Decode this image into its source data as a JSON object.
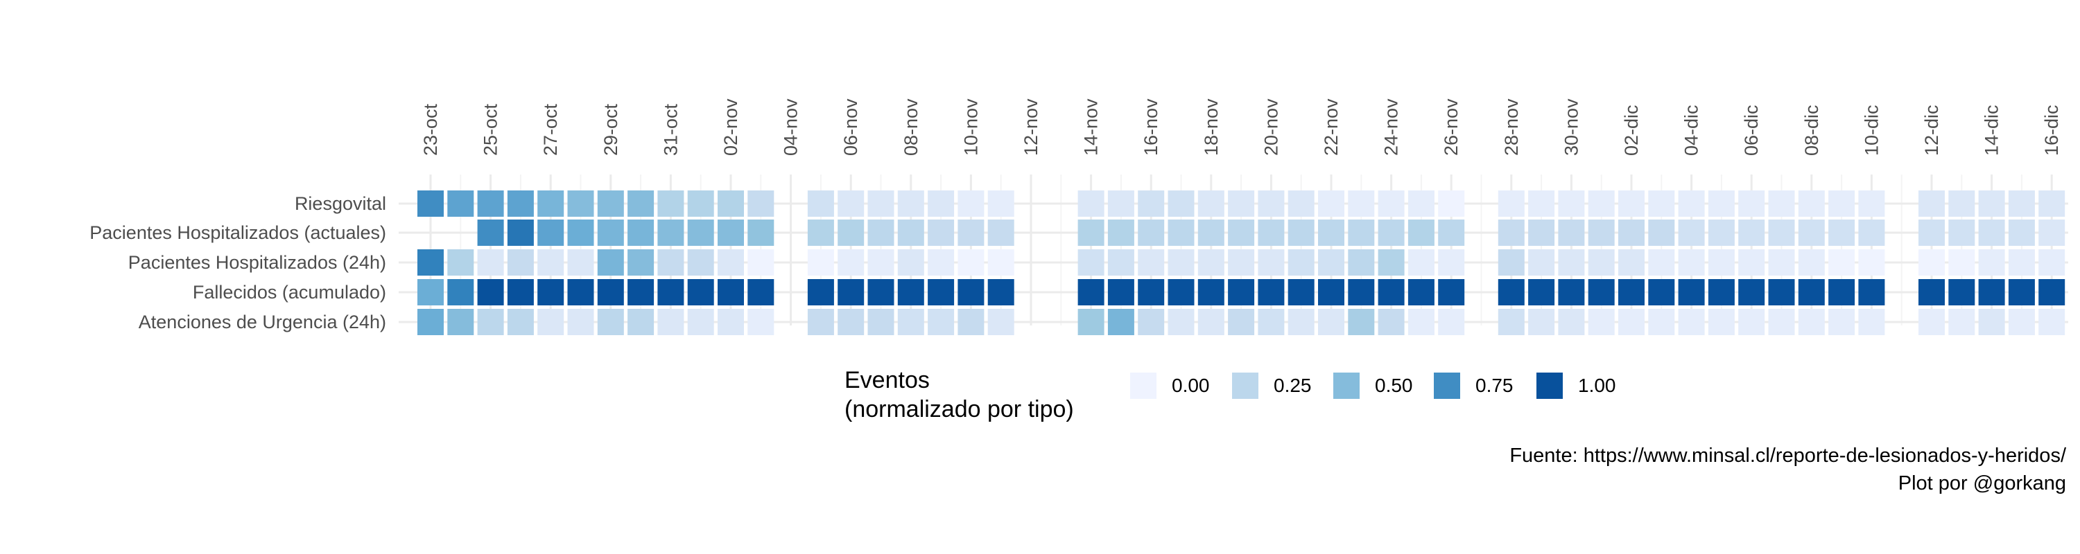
{
  "chart_data": {
    "type": "heatmap",
    "dates": [
      "23-oct",
      "24-oct",
      "25-oct",
      "26-oct",
      "27-oct",
      "28-oct",
      "29-oct",
      "30-oct",
      "31-oct",
      "01-nov",
      "02-nov",
      "03-nov",
      "04-nov",
      "05-nov",
      "06-nov",
      "07-nov",
      "08-nov",
      "09-nov",
      "10-nov",
      "11-nov",
      "12-nov",
      "13-nov",
      "14-nov",
      "15-nov",
      "16-nov",
      "17-nov",
      "18-nov",
      "19-nov",
      "20-nov",
      "21-nov",
      "22-nov",
      "23-nov",
      "24-nov",
      "25-nov",
      "26-nov",
      "27-nov",
      "28-nov",
      "29-nov",
      "30-nov",
      "01-dic",
      "02-dic",
      "03-dic",
      "04-dic",
      "05-dic",
      "06-dic",
      "07-dic",
      "08-dic",
      "09-dic",
      "10-dic",
      "11-dic",
      "12-dic",
      "13-dic",
      "14-dic",
      "15-dic",
      "16-dic",
      "17-dic"
    ],
    "tick_labels": [
      "23-oct",
      "25-oct",
      "27-oct",
      "29-oct",
      "31-oct",
      "02-nov",
      "04-nov",
      "06-nov",
      "08-nov",
      "10-nov",
      "12-nov",
      "14-nov",
      "16-nov",
      "18-nov",
      "20-nov",
      "22-nov",
      "24-nov",
      "26-nov",
      "28-nov",
      "30-nov",
      "02-dic",
      "04-dic",
      "06-dic",
      "08-dic",
      "10-dic",
      "12-dic",
      "14-dic",
      "16-dic"
    ],
    "rows": [
      "Riesgovital",
      "Pacientes Hospitalizados (actuales)",
      "Pacientes Hospitalizados (24h)",
      "Fallecidos (acumulado)",
      "Atenciones de Urgencia (24h)"
    ],
    "values": [
      [
        0.75,
        0.65,
        0.65,
        0.65,
        0.55,
        0.5,
        0.5,
        0.5,
        0.3,
        0.3,
        0.3,
        0.2,
        null,
        0.15,
        0.1,
        0.1,
        0.1,
        0.1,
        0.05,
        0.05,
        null,
        null,
        0.1,
        0.1,
        0.15,
        0.15,
        0.1,
        0.1,
        0.1,
        0.1,
        0.05,
        0.05,
        0.05,
        0.05,
        0.0,
        null,
        0.05,
        0.05,
        0.05,
        0.05,
        0.05,
        0.05,
        0.05,
        0.05,
        0.05,
        0.05,
        0.05,
        0.05,
        0.05,
        null,
        0.1,
        0.1,
        0.1,
        0.1,
        0.1,
        null
      ],
      [
        null,
        null,
        0.75,
        0.85,
        0.65,
        0.6,
        0.55,
        0.55,
        0.5,
        0.5,
        0.5,
        0.45,
        null,
        0.3,
        0.3,
        0.25,
        0.25,
        0.2,
        0.2,
        0.2,
        null,
        null,
        0.3,
        0.3,
        0.25,
        0.25,
        0.25,
        0.25,
        0.25,
        0.25,
        0.25,
        0.25,
        0.25,
        0.3,
        0.25,
        null,
        0.2,
        0.2,
        0.2,
        0.2,
        0.2,
        0.2,
        0.15,
        0.15,
        0.15,
        0.15,
        0.15,
        0.15,
        0.15,
        null,
        0.15,
        0.15,
        0.15,
        0.15,
        0.1,
        null
      ],
      [
        0.8,
        0.3,
        0.1,
        0.2,
        0.1,
        0.1,
        0.55,
        0.5,
        0.2,
        0.2,
        0.1,
        0.0,
        null,
        0.0,
        0.05,
        0.05,
        0.1,
        0.05,
        0.0,
        0.0,
        null,
        null,
        0.15,
        0.15,
        0.1,
        0.1,
        0.1,
        0.1,
        0.1,
        0.15,
        0.15,
        0.25,
        0.3,
        0.05,
        0.05,
        null,
        0.2,
        0.1,
        0.1,
        0.1,
        0.1,
        0.05,
        0.05,
        0.05,
        0.05,
        0.05,
        0.05,
        0.0,
        0.0,
        null,
        0.0,
        0.0,
        0.05,
        0.05,
        0.05,
        null
      ],
      [
        0.6,
        0.8,
        1.0,
        1.0,
        1.0,
        1.0,
        1.0,
        1.0,
        1.0,
        1.0,
        1.0,
        1.0,
        null,
        1.0,
        1.0,
        1.0,
        1.0,
        1.0,
        1.0,
        1.0,
        null,
        null,
        1.0,
        1.0,
        1.0,
        1.0,
        1.0,
        1.0,
        1.0,
        1.0,
        1.0,
        1.0,
        1.0,
        1.0,
        1.0,
        null,
        1.0,
        1.0,
        1.0,
        1.0,
        1.0,
        1.0,
        1.0,
        1.0,
        1.0,
        1.0,
        1.0,
        1.0,
        1.0,
        null,
        1.0,
        1.0,
        1.0,
        1.0,
        1.0,
        null
      ],
      [
        0.6,
        0.5,
        0.25,
        0.25,
        0.1,
        0.1,
        0.25,
        0.25,
        0.1,
        0.1,
        0.1,
        0.05,
        null,
        0.2,
        0.2,
        0.2,
        0.15,
        0.15,
        0.2,
        0.1,
        null,
        null,
        0.4,
        0.55,
        0.2,
        0.1,
        0.1,
        0.2,
        0.15,
        0.1,
        0.1,
        0.35,
        0.2,
        0.05,
        0.05,
        null,
        0.15,
        0.1,
        0.1,
        0.05,
        0.05,
        0.05,
        0.05,
        0.05,
        0.05,
        0.05,
        0.05,
        0.05,
        0.05,
        null,
        0.05,
        0.05,
        0.1,
        0.05,
        0.05,
        null
      ]
    ],
    "legend": {
      "title": "Eventos\n(normalizado por tipo)",
      "labels": [
        "0.00",
        "0.25",
        "0.50",
        "0.75",
        "1.00"
      ],
      "values": [
        0.0,
        0.25,
        0.5,
        0.75,
        1.0
      ]
    },
    "color_scale": [
      "#eff3ff",
      "#c6dbef",
      "#9ecae1",
      "#6baed6",
      "#3182bd",
      "#08519c"
    ]
  },
  "caption": {
    "line1": "Fuente: https://www.minsal.cl/reporte-de-lesionados-y-heridos/",
    "line2": "Plot por @gorkang"
  }
}
